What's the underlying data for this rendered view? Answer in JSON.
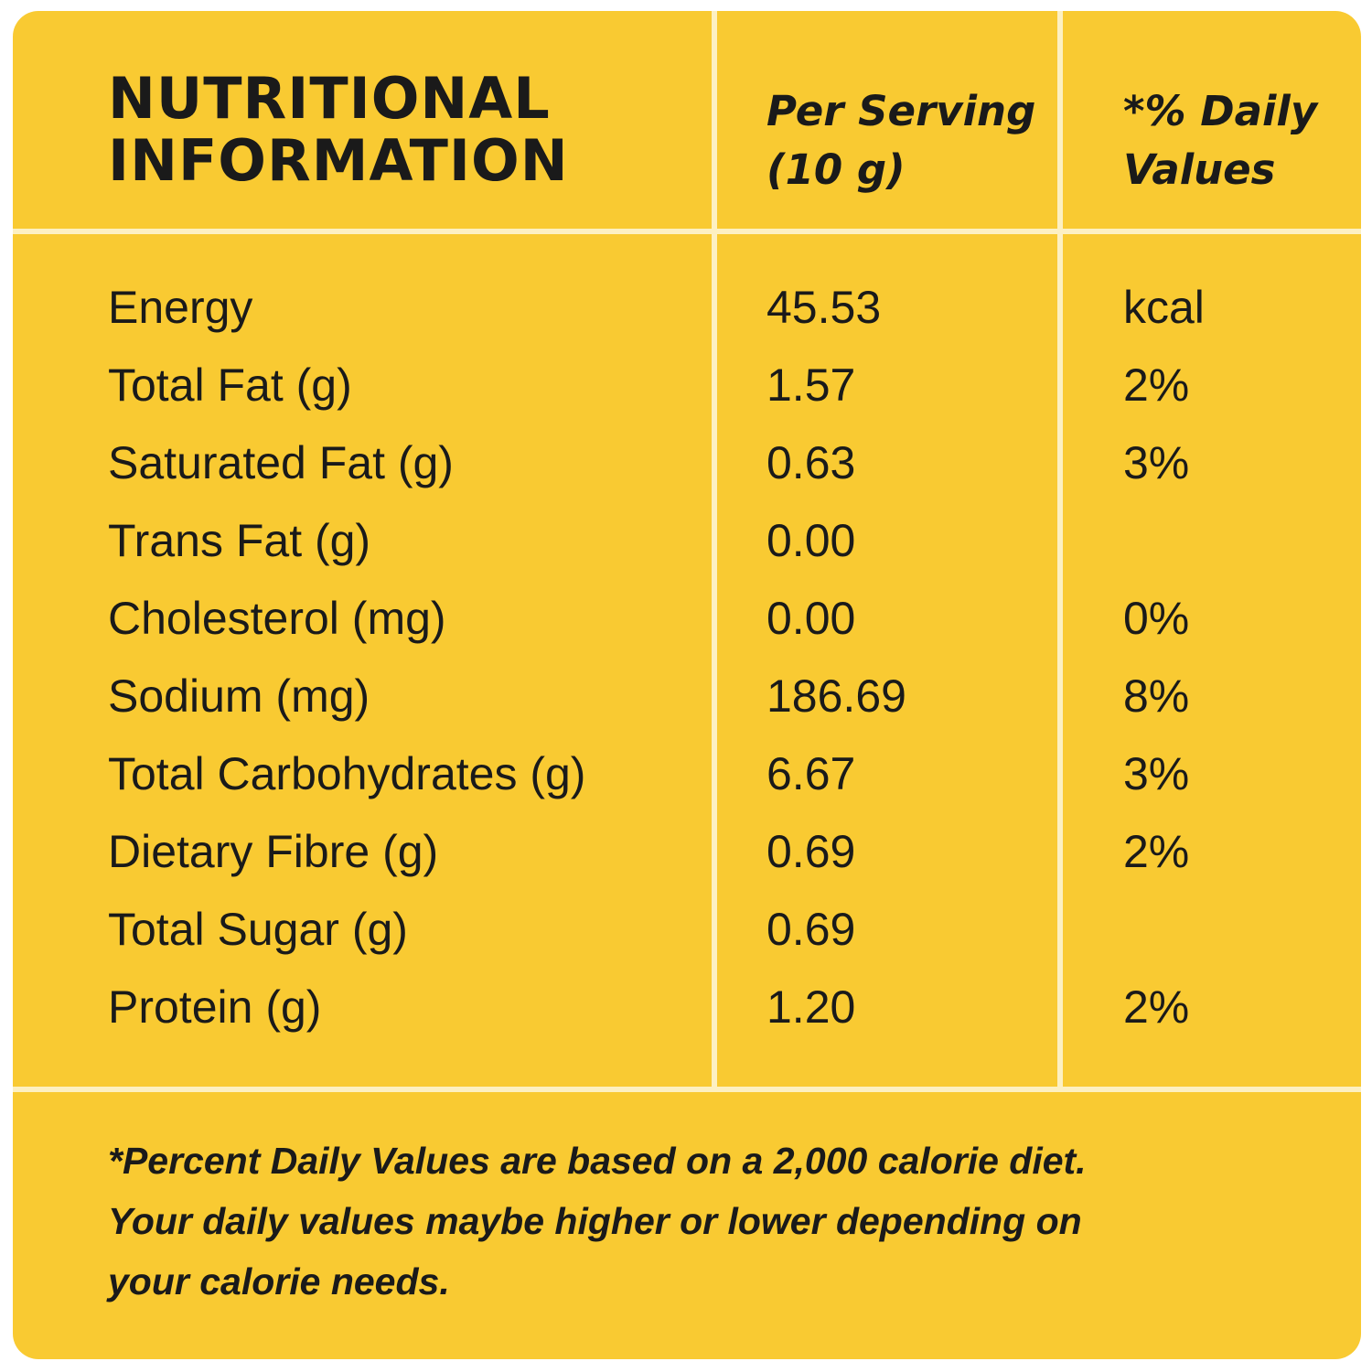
{
  "colors": {
    "panel_background": "#f9ca32",
    "grid_lines": "#fdf0c2",
    "text": "#1a1a1a"
  },
  "header": {
    "title_line1": "NUTRITIONAL",
    "title_line2": "INFORMATION",
    "per_serving_line1": "Per Serving",
    "per_serving_line2": "(10 g)",
    "daily_values_line1": "*% Daily",
    "daily_values_line2": "Values"
  },
  "rows": [
    {
      "label": "Energy",
      "value": "45.53",
      "dv": "kcal"
    },
    {
      "label": "Total Fat (g)",
      "value": "1.57",
      "dv": "2%"
    },
    {
      "label": "Saturated Fat (g)",
      "value": "0.63",
      "dv": "3%"
    },
    {
      "label": "Trans Fat (g)",
      "value": "0.00",
      "dv": ""
    },
    {
      "label": "Cholesterol (mg)",
      "value": "0.00",
      "dv": "0%"
    },
    {
      "label": "Sodium (mg)",
      "value": "186.69",
      "dv": "8%"
    },
    {
      "label": "Total Carbohydrates (g)",
      "value": "6.67",
      "dv": "3%"
    },
    {
      "label": "Dietary Fibre (g)",
      "value": "0.69",
      "dv": "2%"
    },
    {
      "label": "Total Sugar (g)",
      "value": "0.69",
      "dv": ""
    },
    {
      "label": "Protein (g)",
      "value": "1.20",
      "dv": "2%"
    }
  ],
  "footnote": {
    "line1": "*Percent Daily Values are based on a 2,000 calorie diet.",
    "line2": "Your daily values maybe higher or lower depending on",
    "line3": "your calorie needs."
  }
}
